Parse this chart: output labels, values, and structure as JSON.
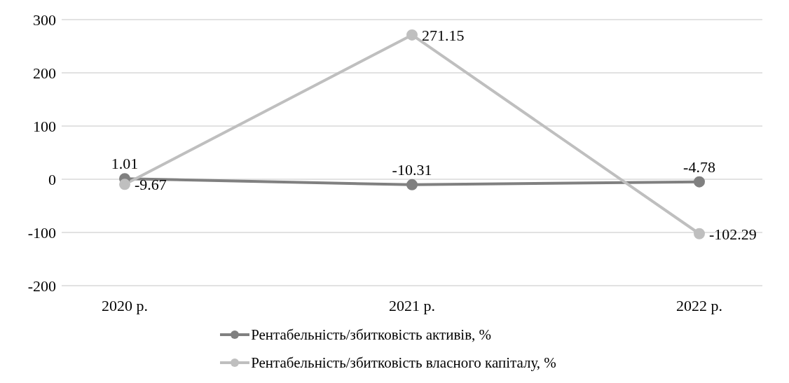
{
  "chart_data": {
    "type": "line",
    "categories": [
      "2020 р.",
      "2021 р.",
      "2022 р."
    ],
    "series": [
      {
        "name": "Рентабельність/збитковість активів, %",
        "color": "#808080",
        "values": [
          1.01,
          -10.31,
          -4.78
        ]
      },
      {
        "name": "Рентабельність/збитковість власного капіталу, %",
        "color": "#bfbfbf",
        "values": [
          -9.67,
          271.15,
          -102.29
        ]
      }
    ],
    "ylim": [
      -200,
      300
    ],
    "yticks": [
      -200,
      -100,
      0,
      100,
      200,
      300
    ],
    "grid": "y",
    "legend": "bottom",
    "marker": "circle",
    "line_style": "solid",
    "data_labels": true
  }
}
